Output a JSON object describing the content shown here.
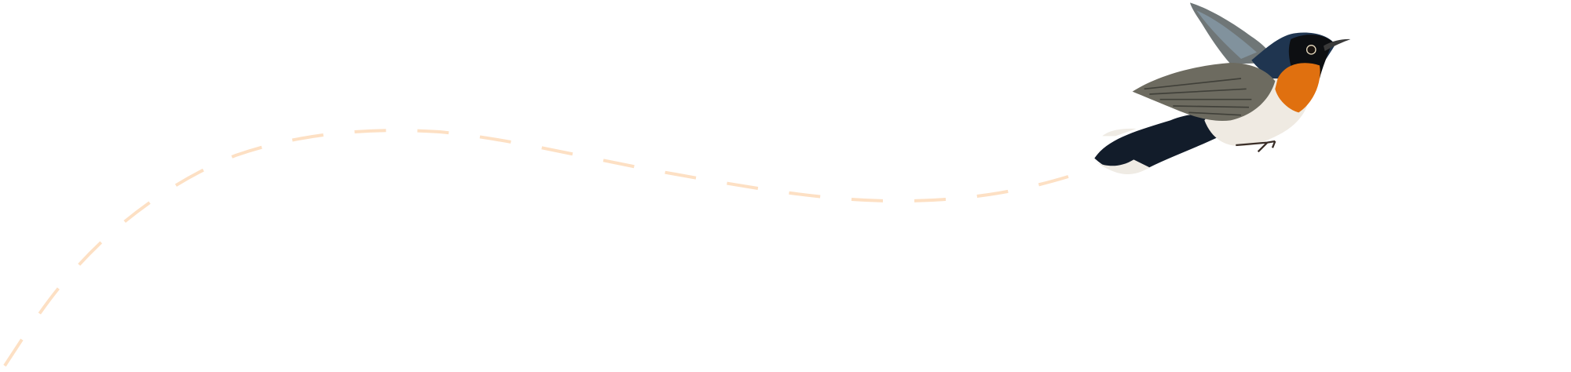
{
  "scene": {
    "background": "#ffffff",
    "path_color": "#fde0c4",
    "illustration": "bird-illustration",
    "bird_colors": {
      "back": "#1c2f45",
      "throat": "#e0700f",
      "belly": "#f1ece4",
      "wing": "#7d7e74",
      "mask": "#0d0f12"
    }
  }
}
